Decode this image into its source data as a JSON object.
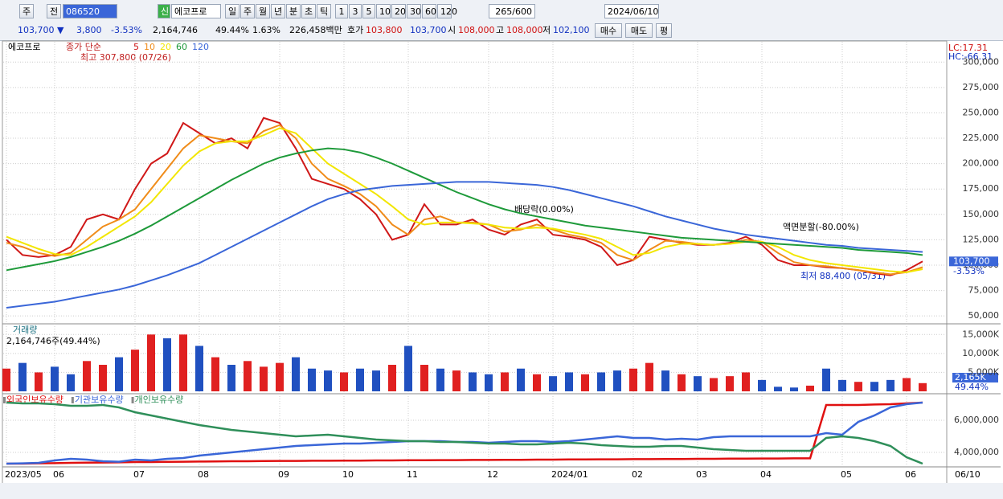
{
  "toolbar": {
    "market": "주",
    "prev": "전",
    "code": "086520",
    "name": "에코프로",
    "credit": "신",
    "periods": [
      "일",
      "주",
      "월",
      "년",
      "분",
      "초",
      "틱"
    ],
    "minutes": [
      "1",
      "3",
      "5",
      "10",
      "20",
      "30",
      "60",
      "120"
    ],
    "count": "265",
    "max": "/600",
    "date": "2024/06/10"
  },
  "quote": {
    "price": "103,700 ▼",
    "change": "3,800",
    "rate": "-3.53%",
    "volume": "2,164,746",
    "vol_rate": "49.44%",
    "turnover": "1.63%",
    "amount": "226,458백만",
    "ask_label": "호가",
    "ask": "103,800",
    "bid": "103,700",
    "open_label": "시",
    "open": "108,000",
    "high_label": "고",
    "high": "108,000",
    "low_label": "저",
    "low": "102,100",
    "buy": "매수",
    "sell": "매도",
    "avg": "평"
  },
  "chart_data": [
    {
      "type": "line",
      "title": "에코프로",
      "legend_prefix": "종가 단순",
      "categories": [
        "2023/05",
        null,
        null,
        "06",
        null,
        null,
        null,
        null,
        "07",
        null,
        null,
        null,
        "08",
        null,
        null,
        null,
        null,
        "09",
        null,
        null,
        null,
        "10",
        null,
        null,
        null,
        "11",
        null,
        null,
        null,
        null,
        "12",
        null,
        null,
        null,
        "2024/01",
        null,
        null,
        null,
        null,
        "02",
        null,
        null,
        null,
        "03",
        null,
        null,
        null,
        "04",
        null,
        null,
        null,
        null,
        "05",
        null,
        null,
        null,
        "06",
        null
      ],
      "last_date": "06/10",
      "series": [
        {
          "name": "5",
          "color": "#d01818",
          "values": [
            125000,
            110000,
            108000,
            110000,
            118000,
            145000,
            150000,
            145000,
            175000,
            200000,
            210000,
            240000,
            230000,
            220000,
            225000,
            215000,
            245000,
            240000,
            215000,
            185000,
            180000,
            175000,
            165000,
            150000,
            125000,
            130000,
            160000,
            140000,
            140000,
            145000,
            135000,
            130000,
            140000,
            145000,
            130000,
            128000,
            125000,
            118000,
            100000,
            105000,
            128000,
            125000,
            122000,
            120000,
            120000,
            122000,
            128000,
            120000,
            105000,
            100000,
            100000,
            98000,
            97000,
            95000,
            92000,
            90000,
            95000,
            103700
          ]
        },
        {
          "name": "10",
          "color": "#f08c1a",
          "values": [
            122000,
            118000,
            112000,
            109000,
            112000,
            125000,
            138000,
            145000,
            155000,
            175000,
            195000,
            215000,
            228000,
            225000,
            222000,
            220000,
            232000,
            238000,
            225000,
            200000,
            185000,
            178000,
            170000,
            158000,
            140000,
            130000,
            145000,
            148000,
            142000,
            142000,
            140000,
            133000,
            135000,
            140000,
            135000,
            130000,
            127000,
            122000,
            110000,
            105000,
            115000,
            124000,
            123000,
            121000,
            120000,
            121000,
            125000,
            123000,
            112000,
            103000,
            100000,
            99000,
            97000,
            95000,
            93000,
            91000,
            93000,
            98000
          ]
        },
        {
          "name": "20",
          "color": "#f2e600",
          "values": [
            128000,
            122000,
            116000,
            111000,
            110000,
            118000,
            128000,
            138000,
            148000,
            162000,
            180000,
            198000,
            212000,
            220000,
            222000,
            222000,
            228000,
            235000,
            230000,
            215000,
            200000,
            190000,
            180000,
            170000,
            158000,
            145000,
            140000,
            142000,
            142000,
            141000,
            140000,
            137000,
            136000,
            137000,
            136000,
            133000,
            130000,
            126000,
            118000,
            110000,
            112000,
            118000,
            121000,
            121000,
            120000,
            121000,
            123000,
            123000,
            118000,
            110000,
            105000,
            102000,
            100000,
            98000,
            96000,
            94000,
            93000,
            96000
          ]
        },
        {
          "name": "60",
          "color": "#1e9a3a",
          "values": [
            95000,
            98000,
            101000,
            104000,
            108000,
            113000,
            118000,
            124000,
            131000,
            139000,
            148000,
            157000,
            166000,
            175000,
            184000,
            192000,
            200000,
            206000,
            210000,
            213000,
            215000,
            214000,
            211000,
            206000,
            200000,
            193000,
            186000,
            179000,
            172000,
            166000,
            160000,
            155000,
            151000,
            148000,
            145000,
            142000,
            139000,
            137000,
            135000,
            133000,
            131000,
            129000,
            127000,
            126000,
            125000,
            124000,
            123000,
            122000,
            121000,
            120000,
            119000,
            118000,
            117000,
            115000,
            114000,
            113000,
            112000,
            110000
          ]
        },
        {
          "name": "120",
          "color": "#3a66d8",
          "values": [
            58000,
            60000,
            62000,
            64000,
            67000,
            70000,
            73000,
            76000,
            80000,
            85000,
            90000,
            96000,
            102000,
            110000,
            118000,
            126000,
            134000,
            142000,
            150000,
            158000,
            165000,
            170000,
            174000,
            176000,
            178000,
            179000,
            180000,
            181000,
            182000,
            182000,
            182000,
            181000,
            180000,
            179000,
            177000,
            174000,
            170000,
            166000,
            162000,
            158000,
            153000,
            148000,
            144000,
            140000,
            136000,
            133000,
            130000,
            128000,
            126000,
            124000,
            122000,
            120000,
            119000,
            117000,
            116000,
            115000,
            114000,
            113000
          ]
        }
      ],
      "ylim": [
        43000,
        320000
      ],
      "yticks": [
        {
          "value": 50000,
          "label": "50,000"
        },
        {
          "value": 75000,
          "label": "75,000"
        },
        {
          "value": 100000,
          "label": "100,000"
        },
        {
          "value": 125000,
          "label": "125,000"
        },
        {
          "value": 150000,
          "label": "150,000"
        },
        {
          "value": 175000,
          "label": "175,000"
        },
        {
          "value": 200000,
          "label": "200,000"
        },
        {
          "value": 225000,
          "label": "225,000"
        },
        {
          "value": 250000,
          "label": "250,000"
        },
        {
          "value": 275000,
          "label": "275,000"
        },
        {
          "value": 300000,
          "label": "300,000"
        }
      ],
      "grid": true,
      "annotations": {
        "high": "최고 307,800 (07/26)",
        "dividend": "배당락(0.00%)",
        "split": "액면분할(-80.00%)",
        "low": "최저 88,400 (05/31)",
        "lc": "LC:17.31",
        "hc": "HC:-66.31",
        "last": {
          "value": 103700,
          "label": "103,700"
        },
        "last_rate": "-3.53%"
      }
    },
    {
      "type": "bar",
      "title": "거래량",
      "subtitle": "2,164,746주(49.44%)",
      "values": [
        6000,
        7500,
        5000,
        6500,
        4500,
        8000,
        7000,
        9000,
        11000,
        15000,
        14000,
        15000,
        12000,
        9000,
        7000,
        8000,
        6500,
        7500,
        9000,
        6000,
        5500,
        5000,
        6000,
        5500,
        7000,
        12000,
        7000,
        6000,
        5500,
        5000,
        4500,
        5000,
        6000,
        4500,
        4000,
        5000,
        4500,
        5000,
        5500,
        6000,
        7500,
        5500,
        4500,
        4000,
        3500,
        4000,
        5000,
        3000,
        1200,
        1000,
        1500,
        6000,
        3000,
        2500,
        2500,
        3000,
        3500,
        2164.746
      ],
      "colors": [
        "#e02020",
        "#2050c0",
        "#e02020",
        "#2050c0",
        "#2050c0",
        "#e02020",
        "#e02020",
        "#2050c0",
        "#e02020",
        "#e02020",
        "#2050c0",
        "#e02020",
        "#2050c0",
        "#e02020",
        "#2050c0",
        "#e02020",
        "#e02020",
        "#e02020",
        "#2050c0",
        "#2050c0",
        "#2050c0",
        "#e02020",
        "#2050c0",
        "#2050c0",
        "#e02020",
        "#2050c0",
        "#e02020",
        "#2050c0",
        "#e02020",
        "#2050c0",
        "#2050c0",
        "#e02020",
        "#2050c0",
        "#e02020",
        "#2050c0",
        "#2050c0",
        "#e02020",
        "#2050c0",
        "#2050c0",
        "#e02020",
        "#e02020",
        "#2050c0",
        "#e02020",
        "#2050c0",
        "#e02020",
        "#e02020",
        "#e02020",
        "#2050c0",
        "#2050c0",
        "#2050c0",
        "#e02020",
        "#2050c0",
        "#2050c0",
        "#e02020",
        "#2050c0",
        "#2050c0",
        "#e02020",
        "#e02020"
      ],
      "ylim": [
        0,
        17400
      ],
      "yticks": [
        {
          "value": 5000,
          "label": "5,000K"
        },
        {
          "value": 10000,
          "label": "10,000K"
        },
        {
          "value": 15000,
          "label": "15,000K"
        }
      ],
      "annotations": {
        "last": "2,165K",
        "rate": "49.44%"
      }
    },
    {
      "type": "line",
      "series": [
        {
          "name": "외국인보유수량",
          "color": "#e01010",
          "values": [
            3300000,
            3300000,
            3320000,
            3330000,
            3350000,
            3360000,
            3370000,
            3380000,
            3400000,
            3400000,
            3410000,
            3420000,
            3430000,
            3440000,
            3450000,
            3450000,
            3460000,
            3470000,
            3470000,
            3480000,
            3480000,
            3490000,
            3490000,
            3500000,
            3500000,
            3510000,
            3510000,
            3520000,
            3520000,
            3530000,
            3530000,
            3540000,
            3540000,
            3550000,
            3550000,
            3560000,
            3560000,
            3570000,
            3570000,
            3580000,
            3580000,
            3590000,
            3590000,
            3600000,
            3600000,
            3610000,
            3610000,
            3620000,
            3620000,
            3630000,
            3630000,
            6950000,
            6950000,
            6950000,
            6980000,
            7000000,
            7050000,
            7100000
          ]
        },
        {
          "name": "기관보유수량",
          "color": "#3a66d8",
          "values": [
            3300000,
            3320000,
            3350000,
            3500000,
            3600000,
            3550000,
            3450000,
            3420000,
            3550000,
            3500000,
            3600000,
            3650000,
            3800000,
            3900000,
            4000000,
            4100000,
            4200000,
            4300000,
            4400000,
            4450000,
            4500000,
            4550000,
            4550000,
            4600000,
            4650000,
            4700000,
            4700000,
            4700000,
            4650000,
            4650000,
            4600000,
            4650000,
            4700000,
            4700000,
            4650000,
            4700000,
            4800000,
            4900000,
            5000000,
            4900000,
            4900000,
            4800000,
            4850000,
            4800000,
            4950000,
            5000000,
            5000000,
            5000000,
            5000000,
            5000000,
            5000000,
            5200000,
            5100000,
            5900000,
            6300000,
            6800000,
            7000000,
            7100000
          ]
        },
        {
          "name": "개인보유수량",
          "color": "#2f8f5a",
          "values": [
            7100000,
            7050000,
            7050000,
            7000000,
            6900000,
            6900000,
            6950000,
            6800000,
            6500000,
            6300000,
            6100000,
            5900000,
            5700000,
            5550000,
            5400000,
            5300000,
            5200000,
            5100000,
            5000000,
            5050000,
            5100000,
            5000000,
            4900000,
            4800000,
            4750000,
            4700000,
            4700000,
            4650000,
            4650000,
            4600000,
            4550000,
            4550000,
            4500000,
            4500000,
            4550000,
            4600000,
            4550000,
            4450000,
            4400000,
            4350000,
            4350000,
            4400000,
            4400000,
            4300000,
            4200000,
            4150000,
            4100000,
            4100000,
            4100000,
            4100000,
            4100000,
            4900000,
            5000000,
            4900000,
            4700000,
            4400000,
            3700000,
            3300000
          ]
        }
      ],
      "ylim": [
        3150000,
        7550000
      ],
      "yticks": [
        {
          "value": 4000000,
          "label": "4,000,000"
        },
        {
          "value": 6000000,
          "label": "6,000,000"
        }
      ]
    }
  ]
}
